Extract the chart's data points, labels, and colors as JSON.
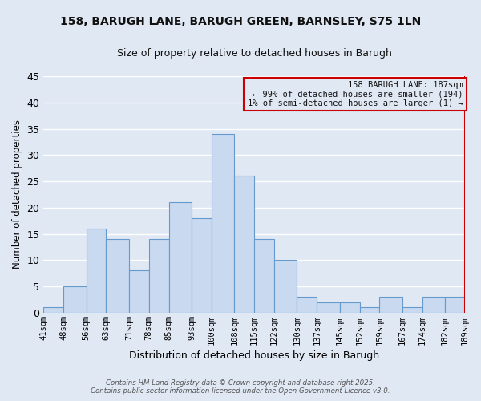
{
  "title": "158, BARUGH LANE, BARUGH GREEN, BARNSLEY, S75 1LN",
  "subtitle": "Size of property relative to detached houses in Barugh",
  "xlabel": "Distribution of detached houses by size in Barugh",
  "ylabel": "Number of detached properties",
  "bar_color": "#c8d9f0",
  "bar_edge_color": "#6699cc",
  "categories": [
    "41sqm",
    "48sqm",
    "56sqm",
    "63sqm",
    "71sqm",
    "78sqm",
    "85sqm",
    "93sqm",
    "100sqm",
    "108sqm",
    "115sqm",
    "122sqm",
    "130sqm",
    "137sqm",
    "145sqm",
    "152sqm",
    "159sqm",
    "167sqm",
    "174sqm",
    "182sqm",
    "189sqm"
  ],
  "values": [
    1,
    5,
    16,
    14,
    8,
    14,
    21,
    18,
    34,
    26,
    14,
    10,
    3,
    2,
    2,
    1,
    3,
    1,
    3,
    3
  ],
  "ylim": [
    0,
    45
  ],
  "yticks": [
    0,
    5,
    10,
    15,
    20,
    25,
    30,
    35,
    40,
    45
  ],
  "annotation_line1": "158 BARUGH LANE: 187sqm",
  "annotation_line2": "← 99% of detached houses are smaller (194)",
  "annotation_line3": "1% of semi-detached houses are larger (1) →",
  "annotation_box_color": "#cc0000",
  "footer1": "Contains HM Land Registry data © Crown copyright and database right 2025.",
  "footer2": "Contains public sector information licensed under the Open Government Licence v3.0.",
  "grid_color": "#ffffff",
  "bg_color": "#e0e8f4",
  "title_fontsize": 10,
  "subtitle_fontsize": 9,
  "bar_left_edges": [
    41,
    48,
    56,
    63,
    71,
    78,
    85,
    93,
    100,
    108,
    115,
    122,
    130,
    137,
    145,
    152,
    159,
    167,
    174,
    182
  ],
  "bar_widths": [
    7,
    8,
    7,
    8,
    7,
    7,
    8,
    7,
    8,
    7,
    7,
    8,
    7,
    8,
    7,
    7,
    8,
    7,
    8,
    7
  ]
}
